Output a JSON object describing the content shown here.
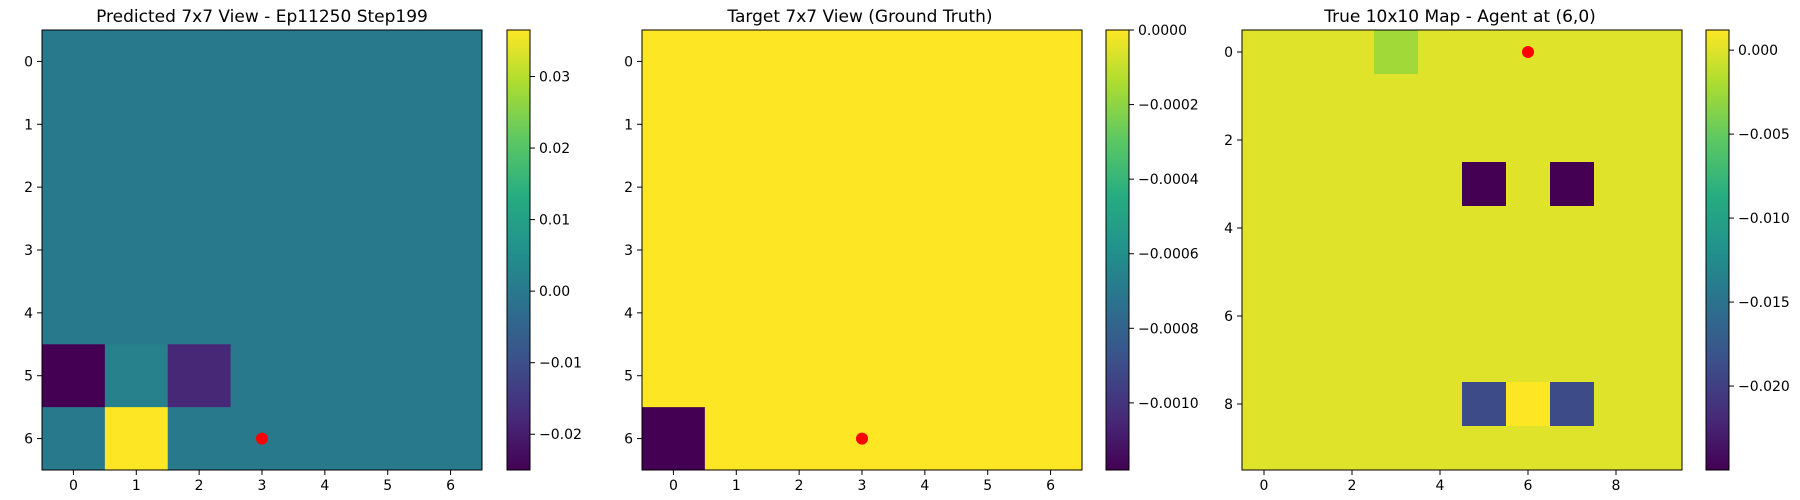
{
  "chart_data": [
    {
      "type": "heatmap",
      "title": "Predicted 7x7 View - Ep11250 Step199",
      "rows": 7,
      "cols": 7,
      "x_ticks": [
        0,
        1,
        2,
        3,
        4,
        5,
        6
      ],
      "y_ticks": [
        0,
        1,
        2,
        3,
        4,
        5,
        6
      ],
      "vmin": -0.025,
      "vmax": 0.0365,
      "colorbar_ticks": [
        0.03,
        0.02,
        0.01,
        0.0,
        -0.01,
        -0.02
      ],
      "colorbar_tick_labels": [
        "0.03",
        "0.02",
        "0.01",
        "0.00",
        "−0.01",
        "−0.02"
      ],
      "values": [
        [
          0.0,
          0.0,
          0.0,
          0.0,
          0.0,
          0.0,
          0.0
        ],
        [
          0.0,
          0.0,
          0.0,
          0.0,
          0.0,
          0.0,
          0.0
        ],
        [
          0.0,
          0.0,
          0.0,
          0.0,
          0.0,
          0.0,
          0.0
        ],
        [
          0.0,
          0.0,
          0.0,
          0.0,
          0.0,
          0.0,
          0.0
        ],
        [
          0.0,
          0.0,
          0.0,
          0.0,
          0.0,
          0.0,
          0.0
        ],
        [
          -0.025,
          0.002,
          -0.018,
          0.0,
          0.0,
          0.0,
          0.0
        ],
        [
          0.0,
          0.0365,
          0.0,
          0.0,
          0.0,
          0.0,
          0.0
        ]
      ],
      "markers": [
        {
          "row": 6,
          "col": 3,
          "color": "#ff0000"
        }
      ]
    },
    {
      "type": "heatmap",
      "title": "Target 7x7 View (Ground Truth)",
      "rows": 7,
      "cols": 7,
      "x_ticks": [
        0,
        1,
        2,
        3,
        4,
        5,
        6
      ],
      "y_ticks": [
        0,
        1,
        2,
        3,
        4,
        5,
        6
      ],
      "vmin": -0.00118,
      "vmax": 0.0,
      "colorbar_ticks": [
        0.0,
        -0.0002,
        -0.0004,
        -0.0006,
        -0.0008,
        -0.001
      ],
      "colorbar_tick_labels": [
        "0.0000",
        "−0.0002",
        "−0.0004",
        "−0.0006",
        "−0.0008",
        "−0.0010"
      ],
      "values": [
        [
          0,
          0,
          0,
          0,
          0,
          0,
          0
        ],
        [
          0,
          0,
          0,
          0,
          0,
          0,
          0
        ],
        [
          0,
          0,
          0,
          0,
          0,
          0,
          0
        ],
        [
          0,
          0,
          0,
          0,
          0,
          0,
          0
        ],
        [
          0,
          0,
          0,
          0,
          0,
          0,
          0
        ],
        [
          0,
          0,
          0,
          0,
          0,
          0,
          0
        ],
        [
          -0.00118,
          0,
          0,
          0,
          0,
          0,
          0
        ]
      ],
      "markers": [
        {
          "row": 6,
          "col": 3,
          "color": "#ff0000"
        }
      ]
    },
    {
      "type": "heatmap",
      "title": "True 10x10 Map - Agent at (6,0)",
      "rows": 10,
      "cols": 10,
      "x_ticks": [
        0,
        2,
        4,
        6,
        8
      ],
      "y_ticks": [
        0,
        2,
        4,
        6,
        8
      ],
      "vmin": -0.025,
      "vmax": 0.0012,
      "colorbar_ticks": [
        0.0,
        -0.005,
        -0.01,
        -0.015,
        -0.02
      ],
      "colorbar_tick_labels": [
        "0.000",
        "−0.005",
        "−0.010",
        "−0.015",
        "−0.020"
      ],
      "values": [
        [
          0,
          0,
          0,
          -0.0025,
          0,
          0,
          0,
          0,
          0,
          0
        ],
        [
          0,
          0,
          0,
          0,
          0,
          0,
          0,
          0,
          0,
          0
        ],
        [
          0,
          0,
          0,
          0,
          0,
          0,
          0,
          0,
          0,
          0
        ],
        [
          0,
          0,
          0,
          0,
          0,
          -0.025,
          0,
          -0.025,
          0,
          0
        ],
        [
          0,
          0,
          0,
          0,
          0,
          0,
          0,
          0,
          0,
          0
        ],
        [
          0,
          0,
          0,
          0,
          0,
          0,
          0,
          0,
          0,
          0
        ],
        [
          0,
          0,
          0,
          0,
          0,
          0,
          0,
          0,
          0,
          0
        ],
        [
          0,
          0,
          0,
          0,
          0,
          0,
          0,
          0,
          0,
          0
        ],
        [
          0,
          0,
          0,
          0,
          0,
          -0.019,
          0.0012,
          -0.019,
          0,
          0
        ],
        [
          0,
          0,
          0,
          0,
          0,
          0,
          0,
          0,
          0,
          0
        ]
      ],
      "markers": [
        {
          "row": 0,
          "col": 6,
          "color": "#ff0000"
        }
      ]
    }
  ]
}
